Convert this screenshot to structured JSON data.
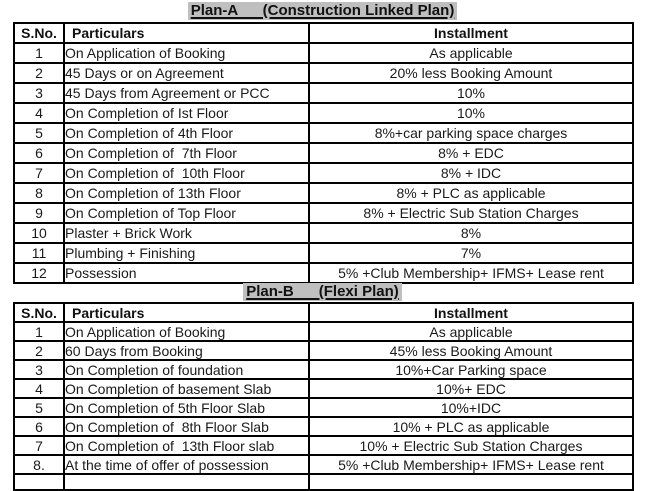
{
  "document": {
    "background": "#ffffff",
    "text_color": "#1a1a1a",
    "border_color": "#000000",
    "title_highlight_color": "#bfbfbf"
  },
  "plan_a": {
    "title": "Plan-A      (Construction Linked Plan)",
    "headers": [
      "S.No.",
      "Particulars",
      "Installment"
    ],
    "rows": [
      [
        "1",
        "On Application of Booking",
        "As applicable"
      ],
      [
        "2",
        "45 Days or on Agreement",
        "20% less Booking Amount"
      ],
      [
        "3",
        "45 Days from Agreement or PCC",
        "10%"
      ],
      [
        "4",
        "On Completion of Ist Floor",
        "10%"
      ],
      [
        "5",
        "On Completion of 4th Floor",
        "8%+car parking space charges"
      ],
      [
        "6",
        "On Completion of  7th Floor",
        "8% + EDC"
      ],
      [
        "7",
        "On Completion of  10th Floor",
        "8% + IDC"
      ],
      [
        "8",
        "On Completion of 13th Floor",
        "8% + PLC as applicable"
      ],
      [
        "9",
        "On Completion of Top Floor",
        "8% + Electric Sub Station Charges"
      ],
      [
        "10",
        "Plaster + Brick Work",
        "8%"
      ],
      [
        "11",
        "Plumbing + Finishing",
        "7%"
      ],
      [
        "12",
        "Possession",
        "5% +Club Membership+ IFMS+ Lease rent"
      ]
    ]
  },
  "plan_b": {
    "title": "Plan-B      (Flexi Plan)",
    "headers": [
      "S.No.",
      "Particulars",
      "Installment"
    ],
    "rows": [
      [
        "1",
        "On Application of Booking",
        "As applicable"
      ],
      [
        "2",
        "60 Days from Booking",
        "45% less Booking Amount"
      ],
      [
        "3",
        "On Completion of foundation",
        "10%+Car Parking space"
      ],
      [
        "4",
        "On Completion of basement Slab",
        "10%+ EDC"
      ],
      [
        "5",
        "On Completion of 5th Floor Slab",
        "10%+IDC"
      ],
      [
        "6",
        "On Completion of  8th Floor Slab",
        "10% + PLC as applicable"
      ],
      [
        "7",
        "On Completion of  13th Floor slab",
        "10% + Electric Sub Station Charges"
      ],
      [
        "8.",
        "At the time of offer of possession",
        "5% +Club Membership+ IFMS+ Lease rent"
      ]
    ]
  }
}
